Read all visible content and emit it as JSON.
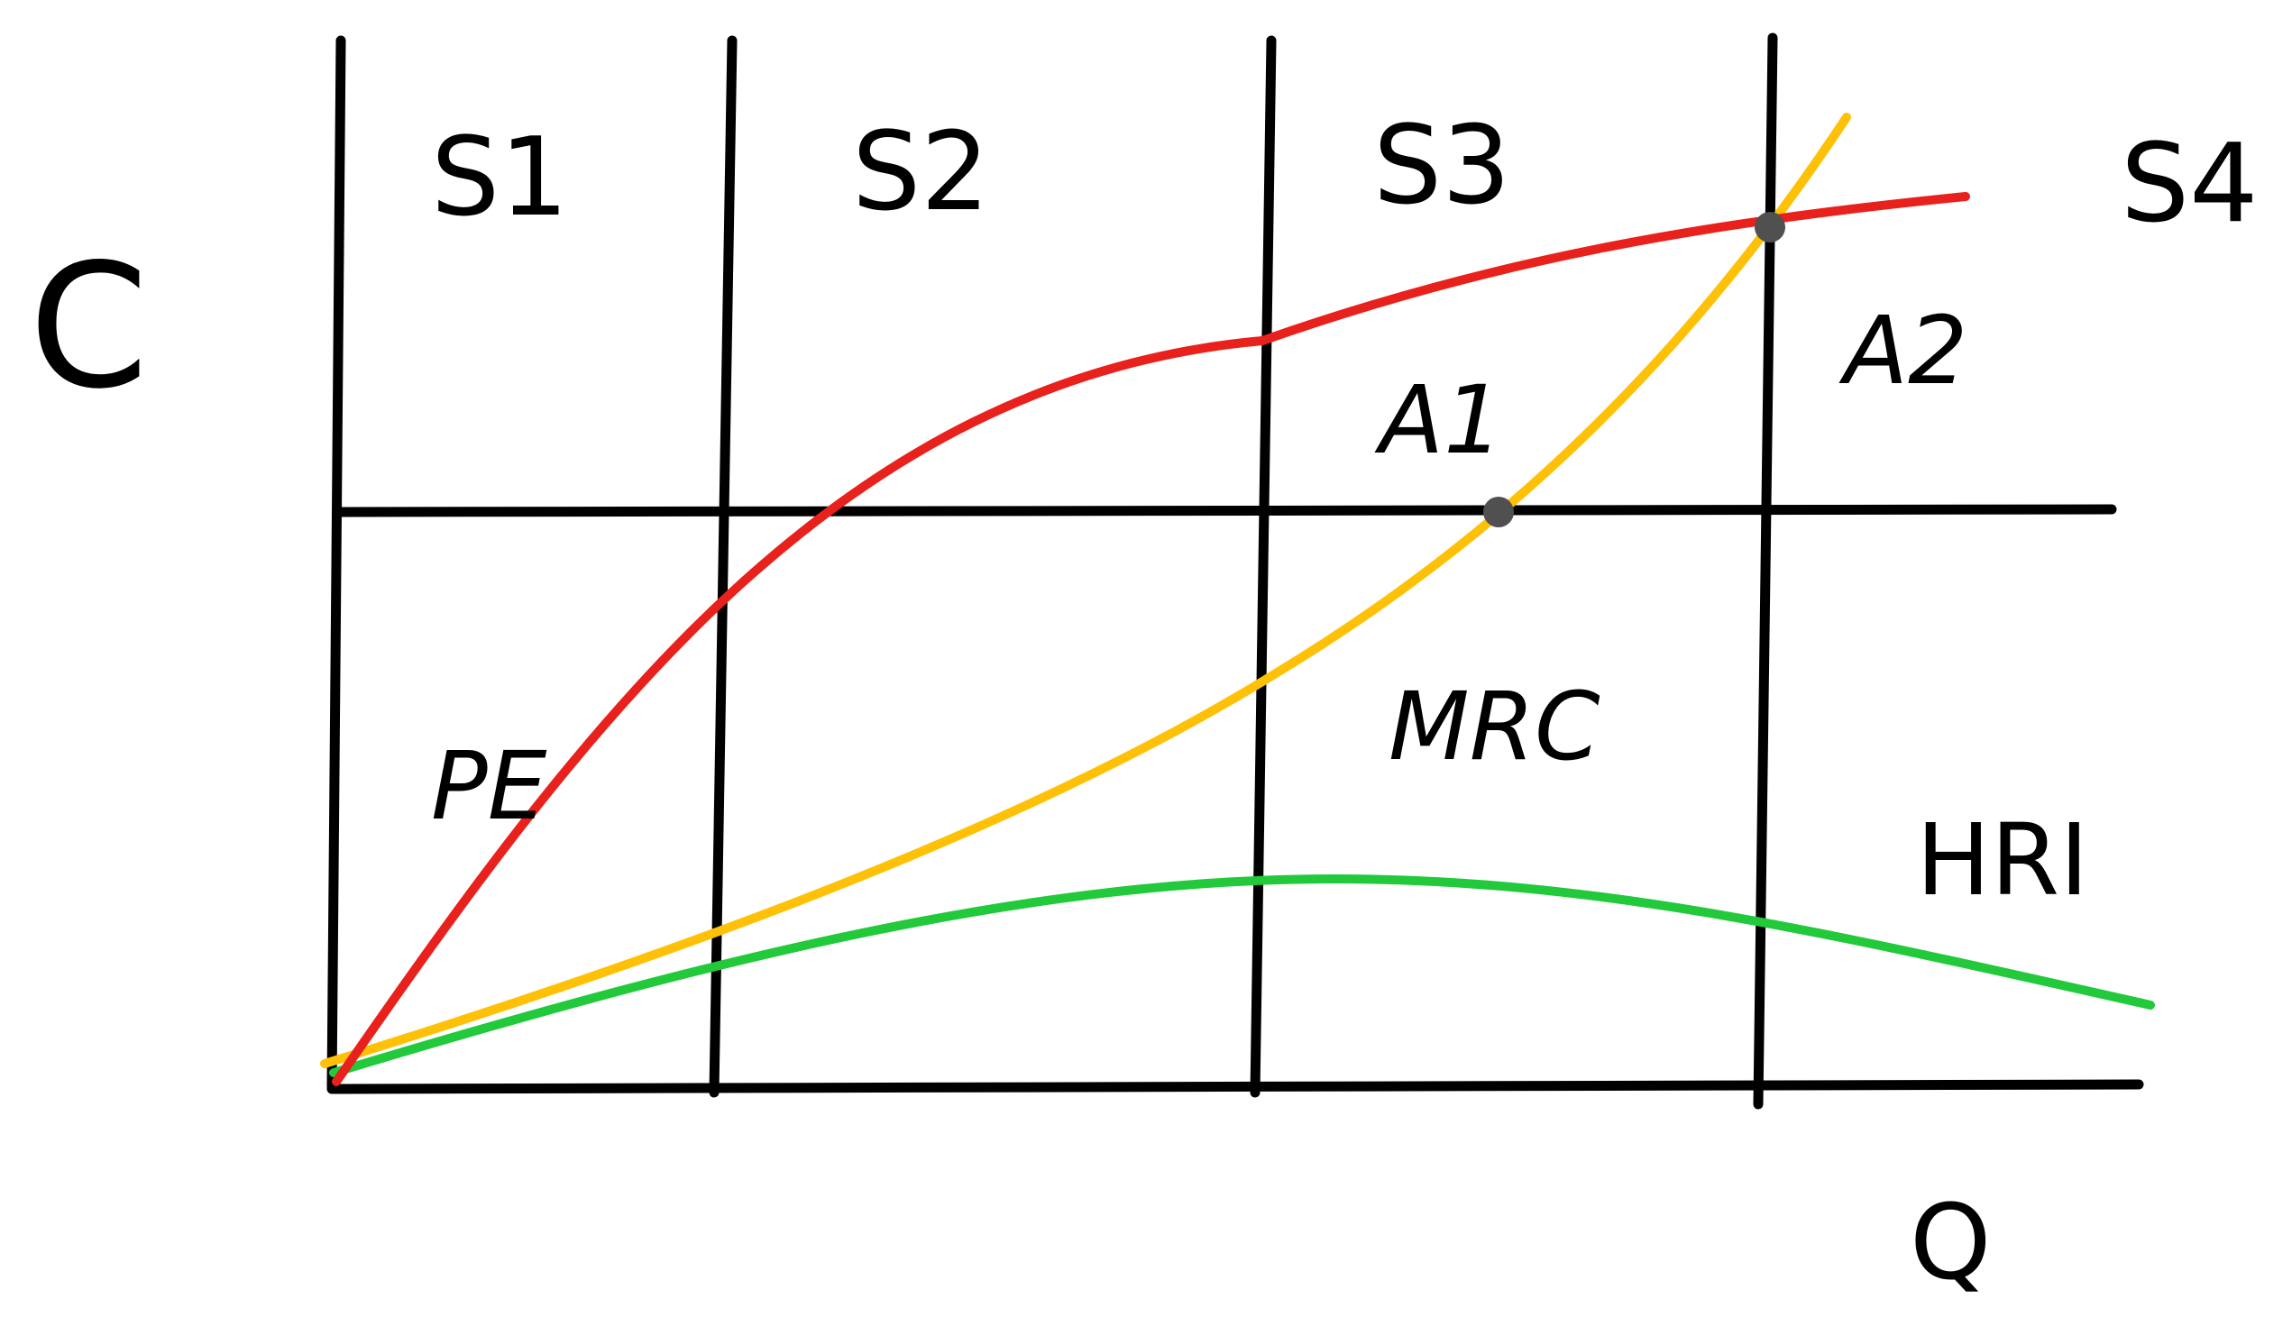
{
  "axes": {
    "y_label": "C",
    "x_label": "Q"
  },
  "stages": [
    "S1",
    "S2",
    "S3",
    "S4"
  ],
  "curves": {
    "pe": {
      "label": "PE",
      "color": "#e8211c"
    },
    "mrc": {
      "label": "MRC",
      "color": "#ffc107"
    },
    "hri": {
      "label": "HRI",
      "color": "#22c93b"
    }
  },
  "points": {
    "a1": {
      "label": "A1",
      "color": "#505050"
    },
    "a2": {
      "label": "A2",
      "color": "#505050"
    }
  }
}
